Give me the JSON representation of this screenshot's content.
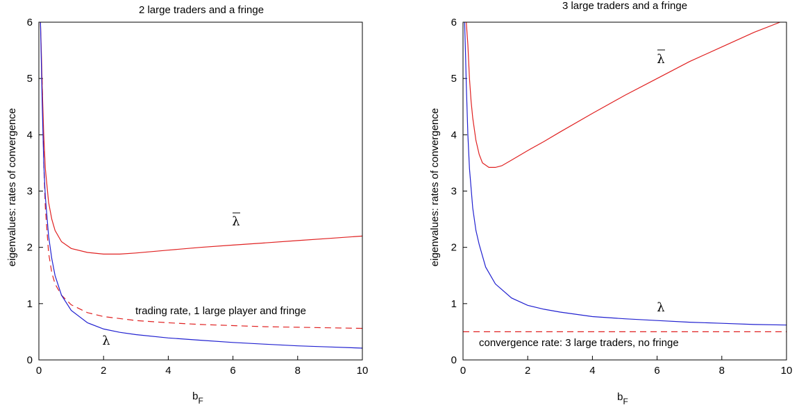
{
  "chart_data": [
    {
      "type": "line",
      "title": "2 large traders and a fringe",
      "xlabel_main": "b",
      "xlabel_sub": "F",
      "ylabel": "eigenvalues: rates of convergence",
      "xlim": [
        0,
        10
      ],
      "ylim": [
        0,
        6
      ],
      "xticks": [
        "0",
        "2",
        "4",
        "6",
        "8",
        "10"
      ],
      "yticks": [
        "0",
        "1",
        "2",
        "3",
        "4",
        "5",
        "6"
      ],
      "grid": false,
      "legend": "none",
      "series": [
        {
          "color": "#e02020",
          "style": "solid",
          "x": [
            0.05,
            0.08,
            0.1,
            0.15,
            0.2,
            0.3,
            0.4,
            0.5,
            0.7,
            1.0,
            1.5,
            2.0,
            2.5,
            3.0,
            4.0,
            5.0,
            6.0,
            7.0,
            8.0,
            9.0,
            10.0
          ],
          "y": [
            6.0,
            5.4,
            4.9,
            4.0,
            3.4,
            2.8,
            2.5,
            2.3,
            2.1,
            1.98,
            1.91,
            1.88,
            1.88,
            1.9,
            1.95,
            2.0,
            2.04,
            2.08,
            2.12,
            2.16,
            2.2
          ]
        },
        {
          "color": "#e02020",
          "style": "dashed",
          "x": [
            0.1,
            0.15,
            0.2,
            0.3,
            0.4,
            0.5,
            0.7,
            1.0,
            1.5,
            2.0,
            3.0,
            4.0,
            5.0,
            6.0,
            7.0,
            8.0,
            9.0,
            10.0
          ],
          "y": [
            5.0,
            3.5,
            2.7,
            1.9,
            1.55,
            1.35,
            1.15,
            0.98,
            0.84,
            0.77,
            0.7,
            0.66,
            0.63,
            0.61,
            0.59,
            0.58,
            0.57,
            0.56
          ]
        },
        {
          "color": "#2020d0",
          "style": "solid",
          "x": [
            0.05,
            0.08,
            0.1,
            0.15,
            0.2,
            0.3,
            0.4,
            0.5,
            0.7,
            1.0,
            1.5,
            2.0,
            2.5,
            3.0,
            4.0,
            5.0,
            6.0,
            7.0,
            8.0,
            9.0,
            10.0
          ],
          "y": [
            6.0,
            5.2,
            4.6,
            3.5,
            2.9,
            2.2,
            1.8,
            1.5,
            1.15,
            0.88,
            0.66,
            0.55,
            0.49,
            0.45,
            0.39,
            0.35,
            0.31,
            0.28,
            0.25,
            0.23,
            0.21
          ]
        }
      ],
      "annotations": {
        "lambda_bar": "λ",
        "lambda": "λ",
        "dashed": "trading rate, 1 large player and fringe"
      }
    },
    {
      "type": "line",
      "title": "3 large traders and a fringe",
      "xlabel_main": "b",
      "xlabel_sub": "F",
      "ylabel": "eigenvalues: rates of convergence",
      "xlim": [
        0,
        10
      ],
      "ylim": [
        0,
        6
      ],
      "xticks": [
        "0",
        "2",
        "4",
        "6",
        "8",
        "10"
      ],
      "yticks": [
        "0",
        "1",
        "2",
        "3",
        "4",
        "5",
        "6"
      ],
      "grid": false,
      "legend": "none",
      "series": [
        {
          "color": "#e02020",
          "style": "solid",
          "x": [
            0.1,
            0.15,
            0.2,
            0.25,
            0.3,
            0.4,
            0.5,
            0.6,
            0.8,
            1.0,
            1.2,
            1.5,
            2.0,
            2.5,
            3.0,
            4.0,
            5.0,
            6.0,
            7.0,
            8.0,
            9.0,
            9.8
          ],
          "y": [
            6.0,
            5.6,
            5.0,
            4.6,
            4.3,
            3.9,
            3.65,
            3.5,
            3.42,
            3.42,
            3.45,
            3.55,
            3.72,
            3.88,
            4.05,
            4.38,
            4.7,
            5.0,
            5.3,
            5.56,
            5.82,
            6.0
          ]
        },
        {
          "color": "#2020d0",
          "style": "solid",
          "x": [
            0.05,
            0.08,
            0.1,
            0.15,
            0.2,
            0.3,
            0.4,
            0.5,
            0.7,
            1.0,
            1.5,
            2.0,
            2.5,
            3.0,
            4.0,
            5.0,
            6.0,
            7.0,
            8.0,
            9.0,
            10.0
          ],
          "y": [
            6.0,
            5.4,
            4.9,
            4.0,
            3.4,
            2.7,
            2.3,
            2.05,
            1.65,
            1.35,
            1.1,
            0.97,
            0.9,
            0.85,
            0.77,
            0.73,
            0.7,
            0.67,
            0.65,
            0.63,
            0.62
          ]
        },
        {
          "color": "#e02020",
          "style": "dashed",
          "x": [
            0.0,
            10.0
          ],
          "y": [
            0.5,
            0.5
          ]
        }
      ],
      "annotations": {
        "lambda_bar": "λ",
        "lambda": "λ",
        "dashed": "convergence rate: 3 large traders, no fringe"
      }
    }
  ]
}
